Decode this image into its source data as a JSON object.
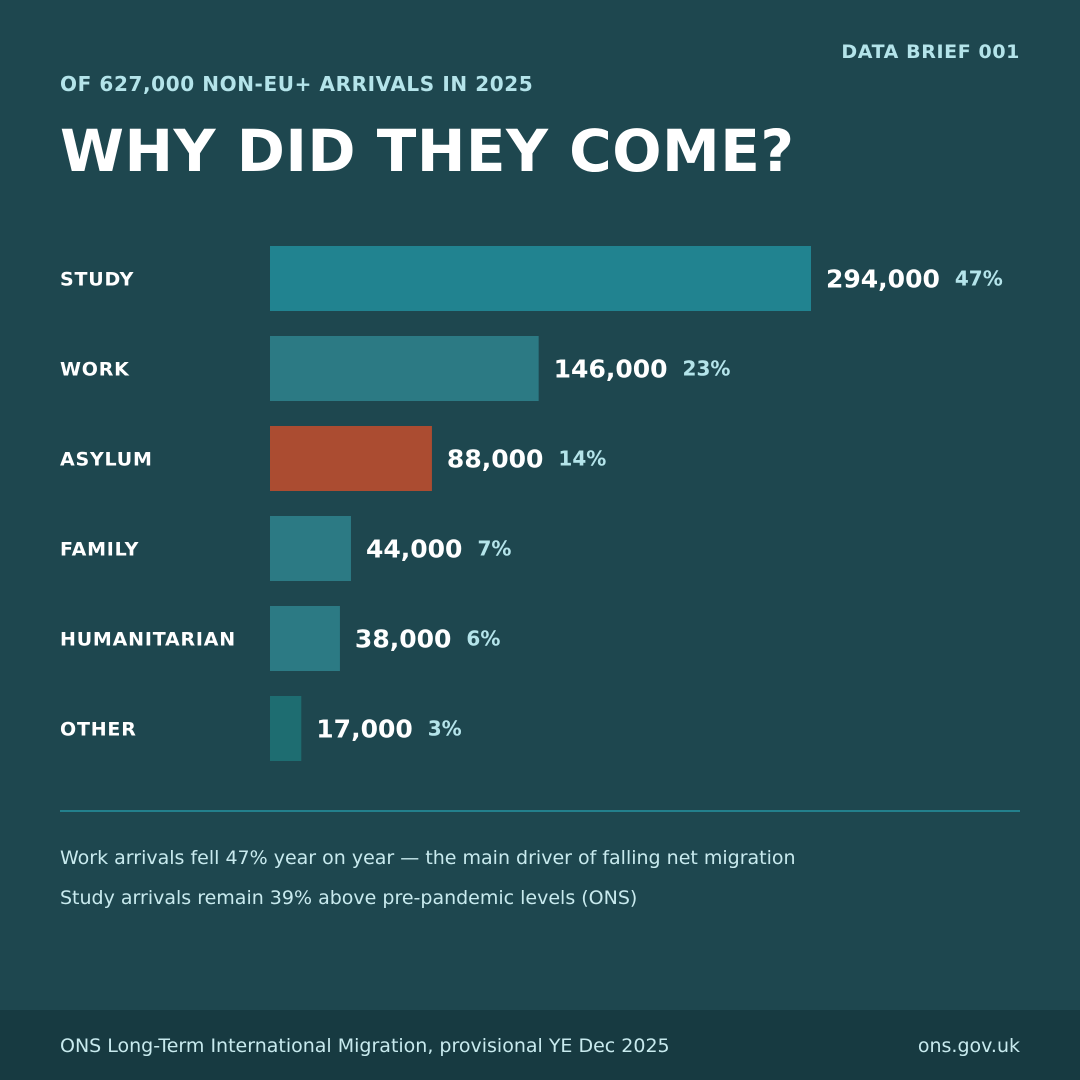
{
  "header": {
    "brief": "DATA BRIEF 001",
    "subtitle": "OF 627,000 NON-EU+ ARRIVALS IN 2025",
    "title": "WHY DID THEY COME?"
  },
  "chart_data": {
    "type": "bar",
    "orientation": "horizontal",
    "title": "WHY DID THEY COME?",
    "subtitle": "OF 627,000 NON-EU+ ARRIVALS IN 2025",
    "categories": [
      "STUDY",
      "WORK",
      "ASYLUM",
      "FAMILY",
      "HUMANITARIAN",
      "OTHER"
    ],
    "values": [
      294000,
      146000,
      88000,
      44000,
      38000,
      17000
    ],
    "value_labels": [
      "294,000",
      "146,000",
      "88,000",
      "44,000",
      "38,000",
      "17,000"
    ],
    "percent_labels": [
      "47%",
      "23%",
      "14%",
      "7%",
      "6%",
      "3%"
    ],
    "colors": [
      "#218390",
      "#2c7a84",
      "#ab4c31",
      "#2c7a84",
      "#2c7a84",
      "#1e6d71"
    ],
    "xlim": [
      0,
      294000
    ],
    "grid": false,
    "legend": "none"
  },
  "notes": [
    "Work arrivals fell 47% year on year — the main driver of falling net migration",
    "Study arrivals remain 39% above pre-pandemic levels (ONS)"
  ],
  "footer": {
    "source": "ONS Long-Term International Migration, provisional YE Dec 2025",
    "site": "ons.gov.uk"
  }
}
